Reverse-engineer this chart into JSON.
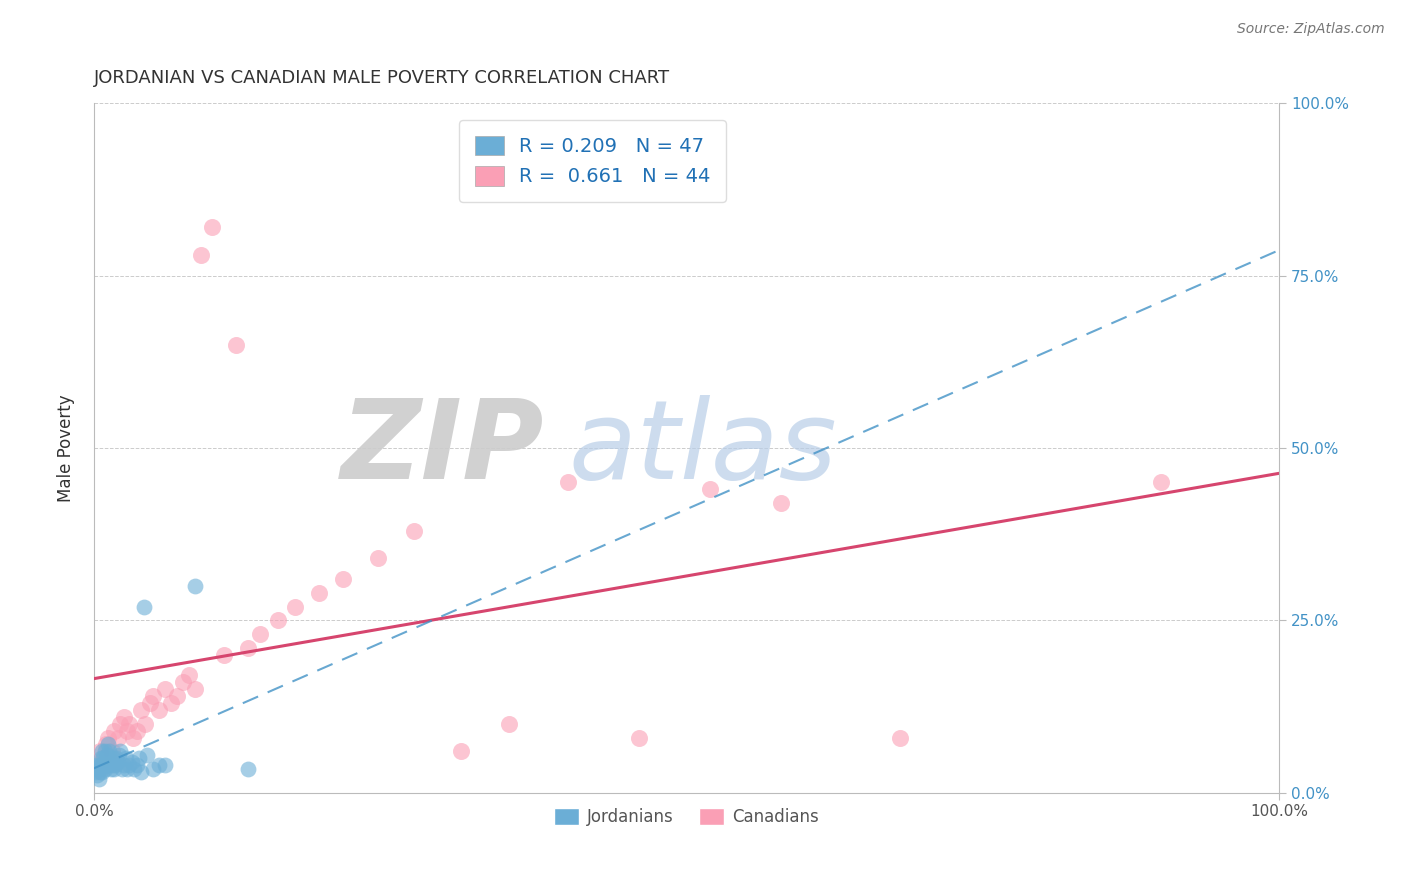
{
  "title": "JORDANIAN VS CANADIAN MALE POVERTY CORRELATION CHART",
  "source_text": "Source: ZipAtlas.com",
  "ylabel": "Male Poverty",
  "xlim": [
    0.0,
    1.0
  ],
  "ylim": [
    0.0,
    1.0
  ],
  "right_ytick_labels": [
    "0.0%",
    "25.0%",
    "50.0%",
    "75.0%",
    "100.0%"
  ],
  "jordanians_R": 0.209,
  "jordanians_N": 47,
  "canadians_R": 0.661,
  "canadians_N": 44,
  "jordanians_color": "#6baed6",
  "canadians_color": "#fa9fb5",
  "jordanians_line_color": "#4292c6",
  "canadians_line_color": "#d6456e",
  "background_color": "#ffffff",
  "grid_color": "#cccccc",
  "title_color": "#333333",
  "legend_text_color": "#2171b5",
  "jordanians_x": [
    0.002,
    0.003,
    0.003,
    0.004,
    0.004,
    0.005,
    0.005,
    0.006,
    0.006,
    0.007,
    0.007,
    0.008,
    0.008,
    0.009,
    0.009,
    0.01,
    0.01,
    0.011,
    0.012,
    0.012,
    0.013,
    0.014,
    0.015,
    0.016,
    0.017,
    0.018,
    0.019,
    0.02,
    0.021,
    0.022,
    0.024,
    0.025,
    0.027,
    0.028,
    0.03,
    0.032,
    0.034,
    0.036,
    0.038,
    0.04,
    0.042,
    0.045,
    0.05,
    0.055,
    0.06,
    0.085,
    0.13
  ],
  "jordanians_y": [
    0.03,
    0.04,
    0.025,
    0.035,
    0.02,
    0.04,
    0.03,
    0.05,
    0.04,
    0.06,
    0.03,
    0.04,
    0.05,
    0.06,
    0.035,
    0.05,
    0.04,
    0.055,
    0.07,
    0.04,
    0.06,
    0.035,
    0.04,
    0.05,
    0.035,
    0.04,
    0.05,
    0.045,
    0.055,
    0.06,
    0.035,
    0.04,
    0.05,
    0.035,
    0.04,
    0.045,
    0.035,
    0.04,
    0.05,
    0.03,
    0.27,
    0.055,
    0.035,
    0.04,
    0.04,
    0.3,
    0.035
  ],
  "canadians_x": [
    0.005,
    0.008,
    0.01,
    0.012,
    0.015,
    0.017,
    0.02,
    0.022,
    0.025,
    0.028,
    0.03,
    0.033,
    0.036,
    0.04,
    0.043,
    0.047,
    0.05,
    0.055,
    0.06,
    0.065,
    0.07,
    0.075,
    0.08,
    0.085,
    0.09,
    0.1,
    0.11,
    0.12,
    0.13,
    0.14,
    0.155,
    0.17,
    0.19,
    0.21,
    0.24,
    0.27,
    0.31,
    0.35,
    0.4,
    0.46,
    0.52,
    0.58,
    0.68,
    0.9
  ],
  "canadians_y": [
    0.06,
    0.05,
    0.07,
    0.08,
    0.06,
    0.09,
    0.08,
    0.1,
    0.11,
    0.09,
    0.1,
    0.08,
    0.09,
    0.12,
    0.1,
    0.13,
    0.14,
    0.12,
    0.15,
    0.13,
    0.14,
    0.16,
    0.17,
    0.15,
    0.78,
    0.82,
    0.2,
    0.65,
    0.21,
    0.23,
    0.25,
    0.27,
    0.29,
    0.31,
    0.34,
    0.38,
    0.06,
    0.1,
    0.45,
    0.08,
    0.44,
    0.42,
    0.08,
    0.45
  ],
  "figsize": [
    14.06,
    8.92
  ],
  "dpi": 100
}
